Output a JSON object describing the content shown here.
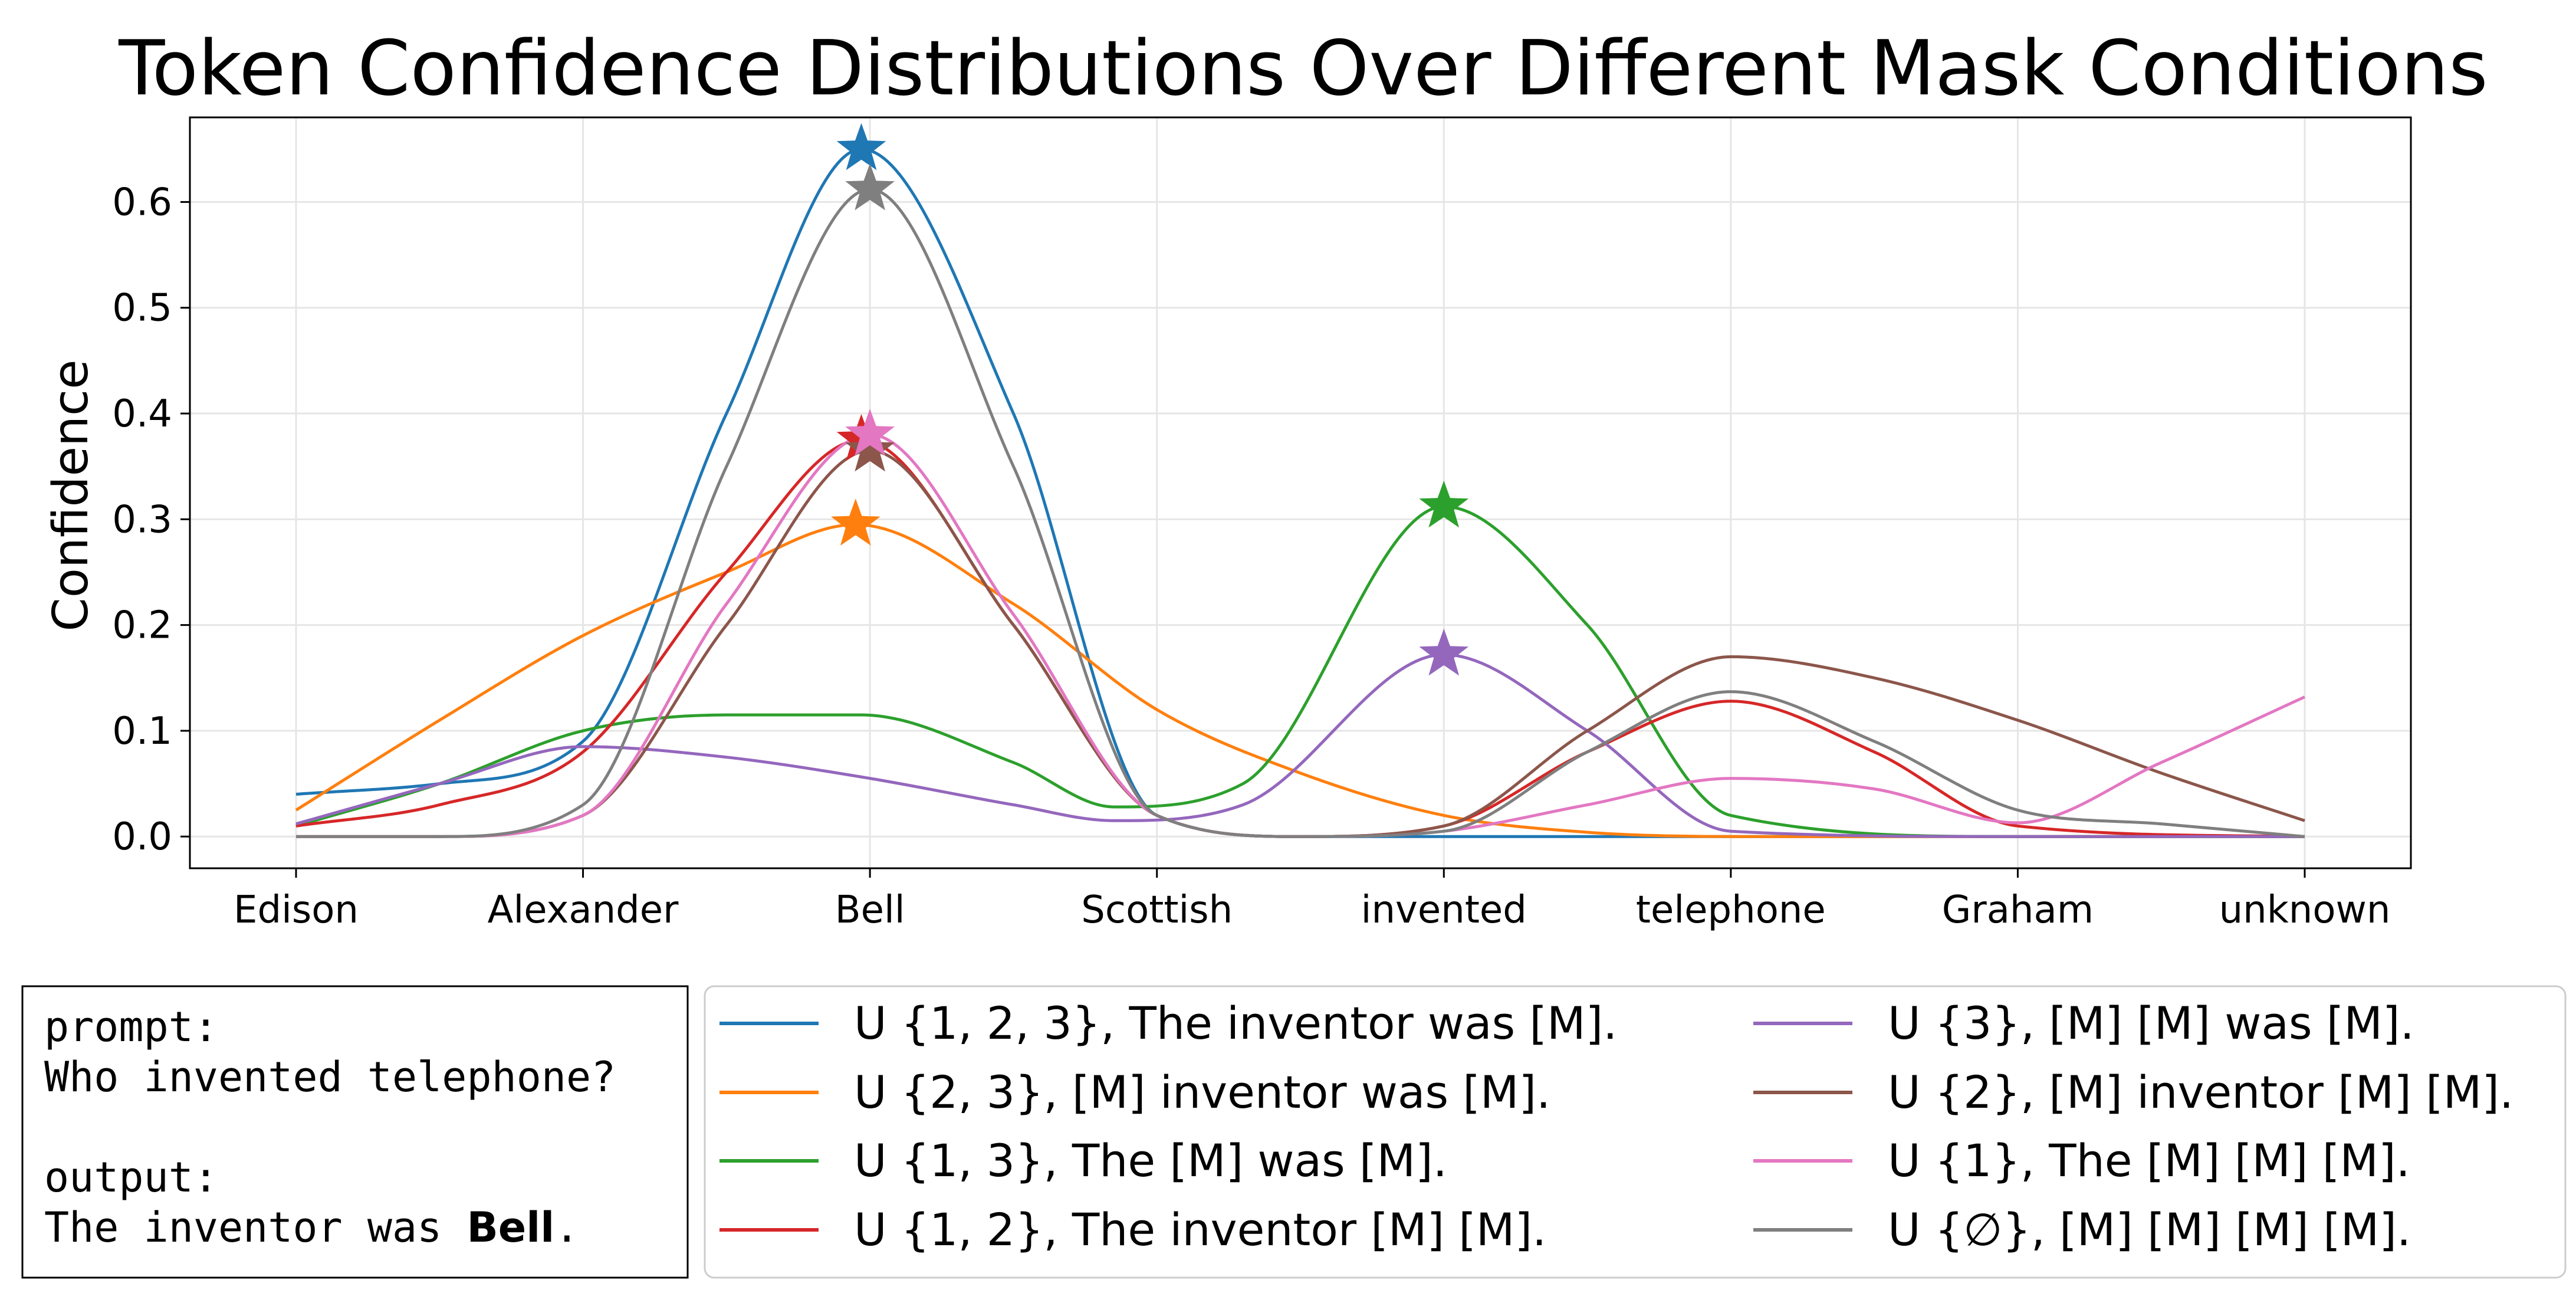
{
  "chart_data": {
    "type": "line",
    "title": "Token Confidence Distributions Over Different Mask Conditions",
    "xlabel": "",
    "ylabel": "Confidence",
    "ylim": [
      -0.03,
      0.68
    ],
    "yticks": [
      0.0,
      0.1,
      0.2,
      0.3,
      0.4,
      0.5,
      0.6
    ],
    "ytick_labels": [
      "0.0",
      "0.1",
      "0.2",
      "0.3",
      "0.4",
      "0.5",
      "0.6"
    ],
    "grid": true,
    "categories": [
      "Edison",
      "Alexander",
      "Bell",
      "Scottish",
      "invented",
      "telephone",
      "Graham",
      "unknown"
    ],
    "series": [
      {
        "name": "U {1, 2, 3}, The inventor was [M].",
        "color": "#1f77b4",
        "x": [
          0,
          0.5,
          1,
          1.5,
          1.97,
          2.5,
          3,
          3.5,
          4,
          5,
          6,
          7
        ],
        "values": [
          0.04,
          0.05,
          0.09,
          0.4,
          0.65,
          0.4,
          0.02,
          0.0,
          0.0,
          0.0,
          0.0,
          0.0
        ],
        "peak": {
          "x": 1.97,
          "y": 0.65
        }
      },
      {
        "name": "U {2, 3}, [M] inventor was [M].",
        "color": "#ff7f0e",
        "x": [
          0,
          0.5,
          1,
          1.5,
          1.95,
          2.5,
          3,
          3.5,
          4,
          4.5,
          5,
          6,
          7
        ],
        "values": [
          0.025,
          0.11,
          0.19,
          0.25,
          0.295,
          0.22,
          0.12,
          0.06,
          0.02,
          0.004,
          0.0,
          0.0,
          0.0
        ],
        "peak": {
          "x": 1.95,
          "y": 0.295
        }
      },
      {
        "name": "U {1, 3}, The [M] was [M].",
        "color": "#2ca02c",
        "x": [
          0,
          0.5,
          1,
          1.5,
          1.97,
          2.5,
          2.85,
          3.3,
          4,
          4.5,
          5,
          6,
          7
        ],
        "values": [
          0.01,
          0.05,
          0.1,
          0.115,
          0.115,
          0.07,
          0.028,
          0.05,
          0.312,
          0.2,
          0.02,
          0.0,
          0.0
        ],
        "peak": {
          "x": 4.0,
          "y": 0.312
        }
      },
      {
        "name": "U {1, 2}, The inventor [M] [M].",
        "color": "#d62728",
        "x": [
          0,
          0.5,
          1,
          1.5,
          1.97,
          2.5,
          3,
          3.5,
          4,
          4.5,
          5,
          5.5,
          6,
          7
        ],
        "values": [
          0.01,
          0.03,
          0.08,
          0.25,
          0.375,
          0.2,
          0.02,
          0.0,
          0.01,
          0.08,
          0.128,
          0.08,
          0.01,
          0.0
        ],
        "peak": {
          "x": 1.97,
          "y": 0.375
        }
      },
      {
        "name": "U {3}, [M] [M] was [M].",
        "color": "#9467bd",
        "x": [
          0,
          0.5,
          1,
          1.5,
          2,
          2.5,
          2.85,
          3.3,
          4,
          4.5,
          5,
          6,
          7
        ],
        "values": [
          0.012,
          0.05,
          0.085,
          0.075,
          0.055,
          0.03,
          0.015,
          0.03,
          0.172,
          0.1,
          0.005,
          0.0,
          0.0
        ],
        "peak": {
          "x": 4.0,
          "y": 0.172
        }
      },
      {
        "name": "U {2}, [M] inventor [M] [M].",
        "color": "#8c564b",
        "x": [
          0,
          0.5,
          1,
          1.5,
          2,
          2.5,
          3,
          3.5,
          4,
          4.5,
          5,
          5.5,
          6,
          6.5,
          7
        ],
        "values": [
          0.0,
          0.0,
          0.02,
          0.2,
          0.365,
          0.2,
          0.02,
          0.0,
          0.01,
          0.1,
          0.17,
          0.15,
          0.11,
          0.06,
          0.015
        ],
        "peak": {
          "x": 2.0,
          "y": 0.365
        }
      },
      {
        "name": "U {1}, The [M] [M] [M].",
        "color": "#e377c2",
        "x": [
          0,
          0.5,
          1,
          1.5,
          2,
          2.5,
          3,
          3.5,
          4,
          4.5,
          5,
          5.5,
          6,
          6.5,
          7
        ],
        "values": [
          0.0,
          0.0,
          0.02,
          0.22,
          0.38,
          0.21,
          0.02,
          0.0,
          0.005,
          0.03,
          0.055,
          0.045,
          0.013,
          0.07,
          0.132
        ],
        "peak": {
          "x": 2.0,
          "y": 0.38
        }
      },
      {
        "name": "U {∅}, [M] [M] [M] [M].",
        "color": "#7f7f7f",
        "x": [
          0,
          0.5,
          1,
          1.5,
          2,
          2.5,
          3,
          3.5,
          4,
          4.5,
          5,
          5.5,
          6,
          6.5,
          7
        ],
        "values": [
          0.0,
          0.0,
          0.03,
          0.35,
          0.612,
          0.35,
          0.02,
          0.0,
          0.005,
          0.08,
          0.137,
          0.09,
          0.025,
          0.012,
          0.0
        ],
        "peak": {
          "x": 2.0,
          "y": 0.612
        }
      }
    ]
  },
  "info_box": {
    "prompt_label": "prompt:",
    "prompt_text": "Who invented telephone?",
    "output_label": "output:",
    "output_prefix": "The inventor was ",
    "output_bold": "Bell",
    "output_suffix": "."
  }
}
